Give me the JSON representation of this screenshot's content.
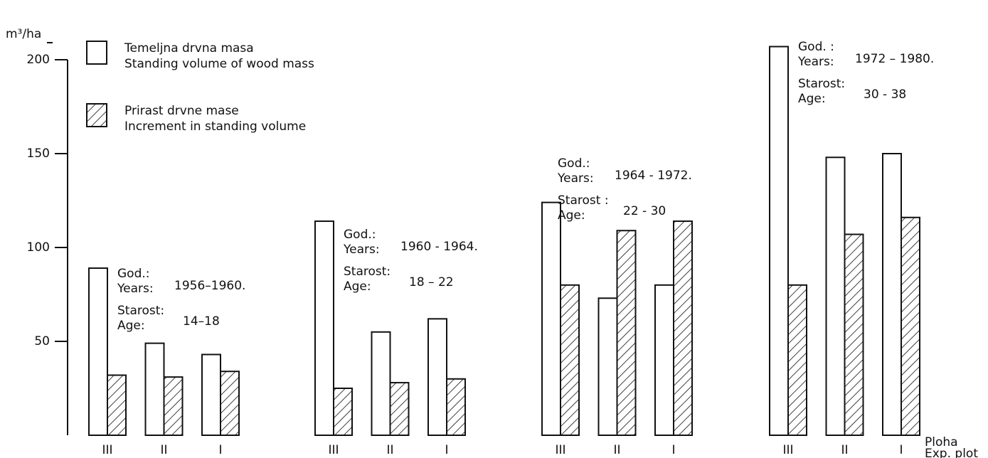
{
  "chart_data": {
    "type": "bar",
    "y_label": "m³/ha",
    "x_label": [
      "Ploha",
      "Exp. plot"
    ],
    "ylim": [
      0,
      200
    ],
    "yticks": [
      50,
      100,
      150,
      200
    ],
    "series": [
      {
        "name": [
          "Temeljna drvna masa",
          "Standing volume of wood mass"
        ],
        "color": "#ffffff",
        "hatch": false
      },
      {
        "name": [
          "Prirast drvne mase",
          "Increment in standing volume"
        ],
        "color": "#ffffff",
        "hatch": true
      }
    ],
    "panels": [
      {
        "god_label": "God.:",
        "years_label": "Years:",
        "years": "1956–1960.",
        "starost_label": "Starost:",
        "age_label": "Age:",
        "age": "14–18",
        "categories": [
          "III",
          "II",
          "I"
        ],
        "values": [
          [
            89,
            49,
            43
          ],
          [
            32,
            31,
            34
          ]
        ]
      },
      {
        "god_label": "God.:",
        "years_label": "Years:",
        "years": "1960 - 1964.",
        "starost_label": "Starost:",
        "age_label": "Age:",
        "age": "18 – 22",
        "categories": [
          "III",
          "II",
          "I"
        ],
        "values": [
          [
            114,
            55,
            62
          ],
          [
            25,
            28,
            30
          ]
        ]
      },
      {
        "god_label": "God.:",
        "years_label": "Years:",
        "years": "1964 - 1972.",
        "starost_label": "Starost :",
        "age_label": "Age:",
        "age": "22 - 30",
        "categories": [
          "III",
          "II",
          "I"
        ],
        "values": [
          [
            124,
            73,
            80
          ],
          [
            80,
            109,
            114
          ]
        ]
      },
      {
        "god_label": "God. :",
        "years_label": "Years:",
        "years": "1972 – 1980.",
        "starost_label": "Starost:",
        "age_label": "Age:",
        "age": "30 - 38",
        "categories": [
          "III",
          "II",
          "I"
        ],
        "values": [
          [
            207,
            148,
            150
          ],
          [
            80,
            107,
            116
          ]
        ]
      }
    ]
  }
}
